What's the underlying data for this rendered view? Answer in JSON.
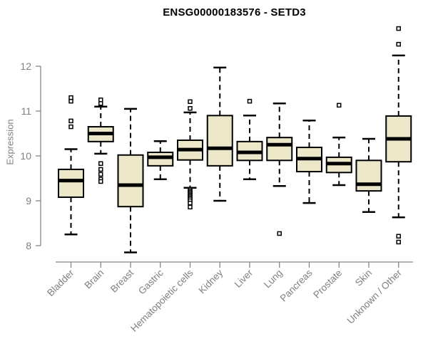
{
  "header": {
    "title": "ENSG00000183576 - SETD3"
  },
  "chart_data": {
    "type": "boxplot",
    "title": "ENSG00000183576 - SETD3",
    "xlabel": "",
    "ylabel": "Expression",
    "ylim": [
      8,
      12
    ],
    "y_ticks": [
      "8",
      "9",
      "10",
      "11",
      "12"
    ],
    "grid": false,
    "legend": "none",
    "categories": [
      "Bladder",
      "Brain",
      "Breast",
      "Gastric",
      "Hematopoietic cells",
      "Kidney",
      "Liver",
      "Lung",
      "Pancreas",
      "Prostate",
      "Skin",
      "Unknown / Other"
    ],
    "series": [
      {
        "name": "Bladder",
        "whisker_low": 8.25,
        "q1": 9.08,
        "median": 9.45,
        "q3": 9.7,
        "whisker_high": 10.15,
        "outliers": [
          10.65,
          10.78,
          11.22,
          11.3
        ]
      },
      {
        "name": "Brain",
        "whisker_low": 10.05,
        "q1": 10.32,
        "median": 10.5,
        "q3": 10.65,
        "whisker_high": 11.1,
        "outliers": [
          11.25,
          11.17,
          9.83,
          9.7,
          9.59,
          9.48,
          9.43
        ]
      },
      {
        "name": "Breast",
        "whisker_low": 7.85,
        "q1": 8.87,
        "median": 9.35,
        "q3": 10.02,
        "whisker_high": 11.05,
        "outliers": []
      },
      {
        "name": "Gastric",
        "whisker_low": 9.48,
        "q1": 9.78,
        "median": 9.97,
        "q3": 10.08,
        "whisker_high": 10.33,
        "outliers": []
      },
      {
        "name": "Hematopoietic cells",
        "whisker_low": 9.29,
        "q1": 9.91,
        "median": 10.14,
        "q3": 10.35,
        "whisker_high": 10.97,
        "outliers": [
          11.21,
          11.06,
          9.25,
          9.22,
          9.19,
          9.16,
          9.13,
          9.1,
          9.07,
          9.04,
          9.0,
          8.95,
          8.86
        ]
      },
      {
        "name": "Kidney",
        "whisker_low": 9.0,
        "q1": 9.78,
        "median": 10.17,
        "q3": 10.9,
        "whisker_high": 11.97,
        "outliers": []
      },
      {
        "name": "Liver",
        "whisker_low": 9.48,
        "q1": 9.9,
        "median": 10.08,
        "q3": 10.32,
        "whisker_high": 10.9,
        "outliers": [
          11.22
        ]
      },
      {
        "name": "Lung",
        "whisker_low": 9.33,
        "q1": 9.9,
        "median": 10.25,
        "q3": 10.41,
        "whisker_high": 11.17,
        "outliers": [
          8.27
        ]
      },
      {
        "name": "Pancreas",
        "whisker_low": 8.95,
        "q1": 9.65,
        "median": 9.94,
        "q3": 10.19,
        "whisker_high": 10.79,
        "outliers": []
      },
      {
        "name": "Prostate",
        "whisker_low": 9.35,
        "q1": 9.63,
        "median": 9.83,
        "q3": 9.97,
        "whisker_high": 10.41,
        "outliers": [
          11.13
        ]
      },
      {
        "name": "Skin",
        "whisker_low": 8.75,
        "q1": 9.22,
        "median": 9.37,
        "q3": 9.9,
        "whisker_high": 10.38,
        "outliers": []
      },
      {
        "name": "Unknown / Other",
        "whisker_low": 8.63,
        "q1": 9.87,
        "median": 10.38,
        "q3": 10.89,
        "whisker_high": 12.24,
        "outliers": [
          12.84,
          12.49,
          8.21,
          8.08
        ]
      }
    ],
    "colors": {
      "box_fill": "#EDE7C9",
      "box_border": "#000000",
      "median": "#000000",
      "whisker": "#000000",
      "outlier_stroke": "#000000",
      "outlier_fill": "#ffffff",
      "axis": "#868686",
      "tick_label": "#7f7f7f",
      "title": "#000000",
      "background": "#ffffff"
    }
  }
}
